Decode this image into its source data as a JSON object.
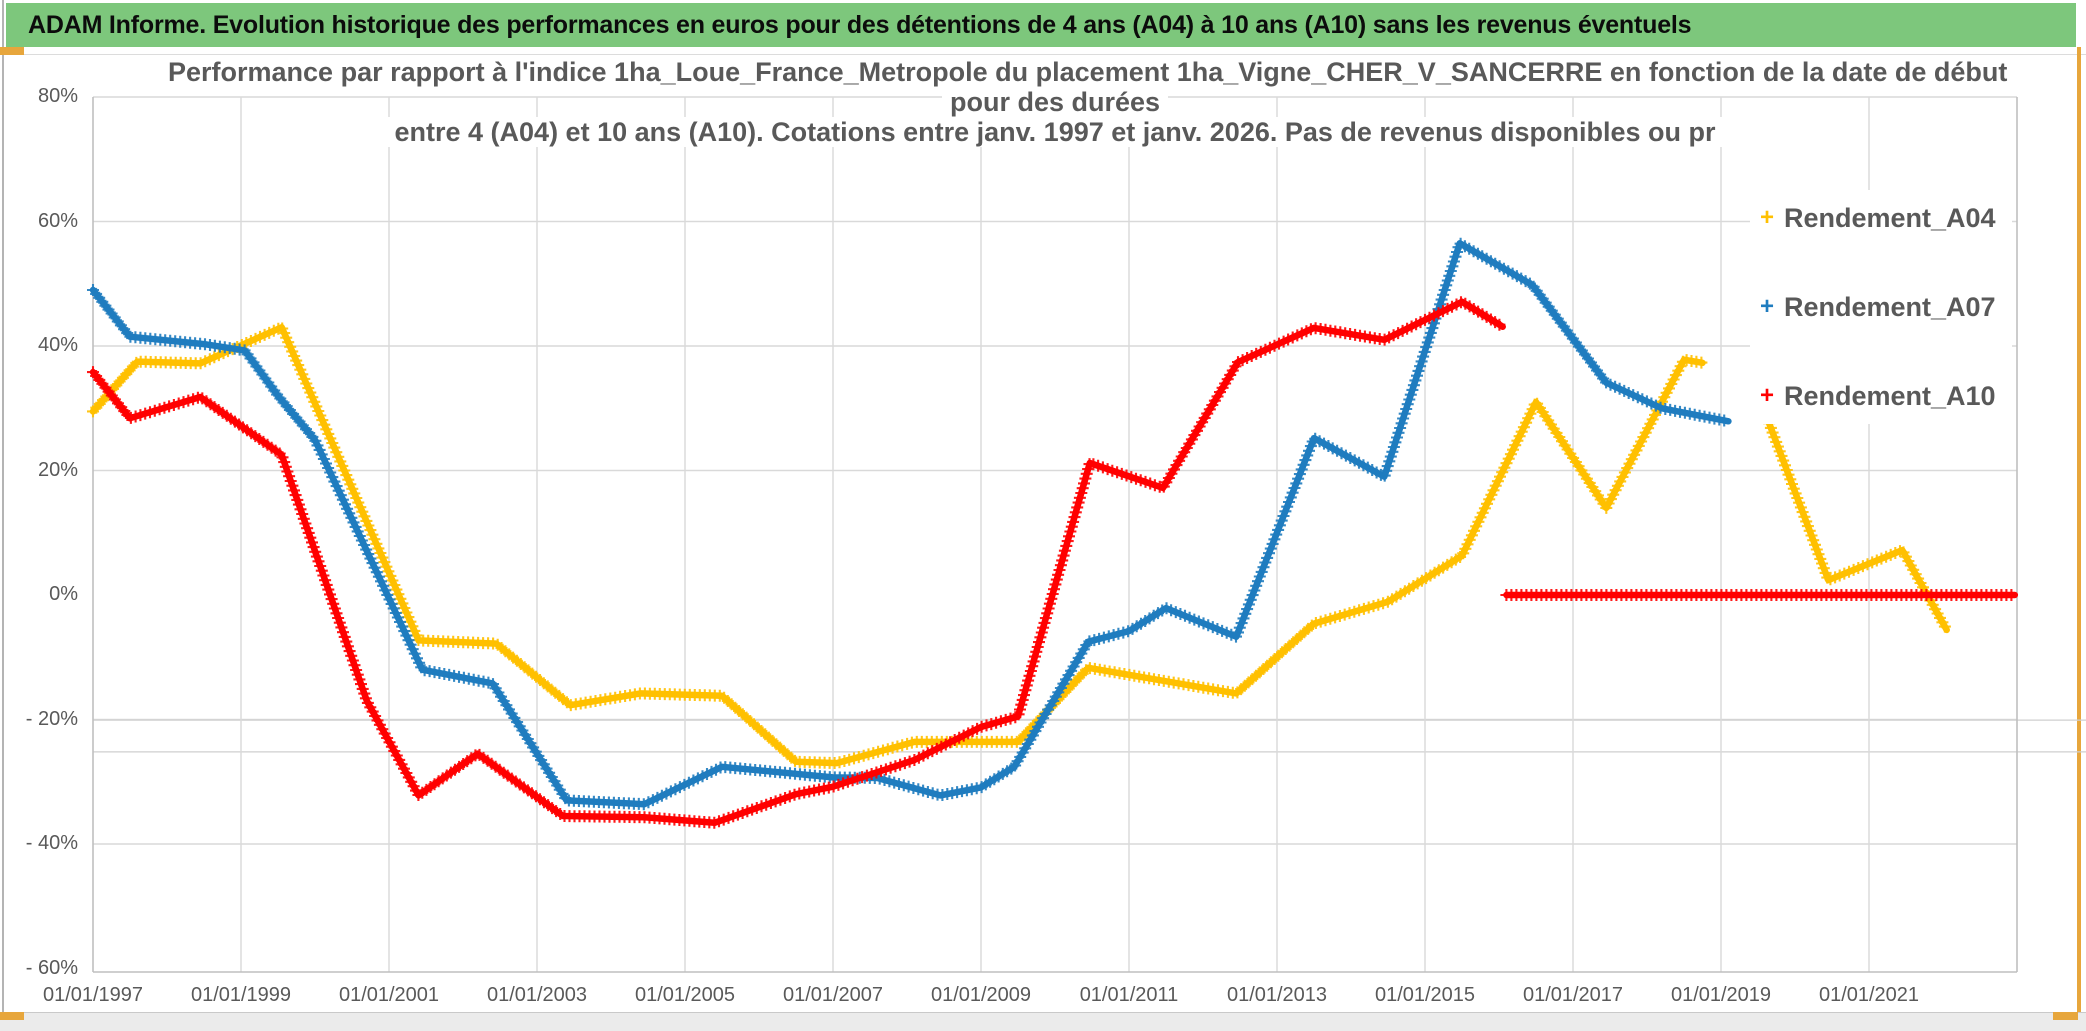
{
  "header": {
    "title": "ADAM Informe. Evolution historique des performances en euros pour des détentions de 4 ans (A04) à 10 ans (A10) sans les revenus éventuels",
    "bar_color": "#7dc77c",
    "accent_color": "#e7a63c"
  },
  "chart_data": {
    "type": "line",
    "title_lines": [
      "Performance par rapport à l'indice 1ha_Loue_France_Metropole  du placement 1ha_Vigne_CHER_V_SANCERRE en fonction de la date de début",
      "pour des durées",
      "entre 4 (A04) et 10 ans (A10). Cotations entre janv. 1997 et janv. 2026. Pas de revenus disponibles ou pr"
    ],
    "xlabel": "",
    "ylabel": "",
    "xlim": [
      1997,
      2023
    ],
    "ylim": [
      -60,
      80
    ],
    "x_ticks": [
      {
        "year": 1997,
        "label": "01/01/1997"
      },
      {
        "year": 1999,
        "label": "01/01/1999"
      },
      {
        "year": 2001,
        "label": "01/01/2001"
      },
      {
        "year": 2003,
        "label": "01/01/2003"
      },
      {
        "year": 2005,
        "label": "01/01/2005"
      },
      {
        "year": 2007,
        "label": "01/01/2007"
      },
      {
        "year": 2009,
        "label": "01/01/2009"
      },
      {
        "year": 2011,
        "label": "01/01/2011"
      },
      {
        "year": 2013,
        "label": "01/01/2013"
      },
      {
        "year": 2015,
        "label": "01/01/2015"
      },
      {
        "year": 2017,
        "label": "01/01/2017"
      },
      {
        "year": 2019,
        "label": "01/01/2019"
      },
      {
        "year": 2021,
        "label": "01/01/2021"
      }
    ],
    "y_ticks": [
      {
        "pct": 80,
        "label": "80%",
        "gridline": true
      },
      {
        "pct": 60,
        "label": "60%",
        "gridline": true
      },
      {
        "pct": 40,
        "label": "40%",
        "gridline": true
      },
      {
        "pct": 20,
        "label": "20%",
        "gridline": true
      },
      {
        "pct": 0,
        "label": "0%",
        "gridline": false
      },
      {
        "pct": -20,
        "label": "- 20%",
        "gridline": true
      },
      {
        "pct": -40,
        "label": "- 40%",
        "gridline": true
      },
      {
        "pct": -60,
        "label": "- 60%",
        "gridline": false
      }
    ],
    "extra_gridlines_pct": [
      -20.1,
      -25.2
    ],
    "grid_years": [
      1999,
      2001,
      2003,
      2005,
      2007,
      2009,
      2011,
      2013,
      2015,
      2017,
      2019,
      2021
    ],
    "legend": [
      {
        "label": "Rendement_A04",
        "color": "#FFC000",
        "marker": "+"
      },
      {
        "label": "Rendement_A07",
        "color": "#1F7CBF",
        "marker": "+"
      },
      {
        "label": "Rendement_A10",
        "color": "#FF0000",
        "marker": "+"
      }
    ],
    "series": [
      {
        "name": "Rendement_A04",
        "color": "#FFC000",
        "segments": [
          [
            [
              1997.0,
              29.5
            ],
            [
              1997.6,
              37.5
            ],
            [
              1998.45,
              37.2
            ],
            [
              1999.55,
              43.0
            ],
            [
              2001.4,
              -7.3
            ],
            [
              2002.45,
              -7.8
            ],
            [
              2003.45,
              -17.7
            ],
            [
              2004.4,
              -15.8
            ],
            [
              2005.5,
              -16.2
            ],
            [
              2006.5,
              -26.8
            ],
            [
              2007.05,
              -27.0
            ],
            [
              2008.1,
              -23.6
            ],
            [
              2009.5,
              -23.6
            ],
            [
              2010.45,
              -11.7
            ],
            [
              2012.45,
              -15.8
            ],
            [
              2013.5,
              -4.6
            ],
            [
              2014.5,
              -1.1
            ],
            [
              2015.5,
              6.3
            ],
            [
              2016.5,
              31.0
            ],
            [
              2017.45,
              14.0
            ],
            [
              2018.5,
              37.8
            ],
            [
              2018.75,
              37.3
            ]
          ],
          [
            [
              2019.65,
              27.6
            ],
            [
              2020.45,
              2.4
            ],
            [
              2021.45,
              7.2
            ],
            [
              2022.05,
              -5.6
            ]
          ]
        ]
      },
      {
        "name": "Rendement_A07",
        "color": "#1F7CBF",
        "segments": [
          [
            [
              1997.0,
              49.0
            ],
            [
              1997.5,
              41.5
            ],
            [
              1998.5,
              40.3
            ],
            [
              1999.05,
              39.3
            ],
            [
              1999.5,
              32.0
            ],
            [
              2000.0,
              24.9
            ],
            [
              2001.45,
              -12.0
            ],
            [
              2002.4,
              -14.2
            ],
            [
              2003.4,
              -33.0
            ],
            [
              2004.45,
              -33.6
            ],
            [
              2005.5,
              -27.6
            ],
            [
              2007.0,
              -29.3
            ],
            [
              2007.6,
              -29.4
            ],
            [
              2008.45,
              -32.2
            ],
            [
              2009.0,
              -30.9
            ],
            [
              2009.45,
              -27.6
            ],
            [
              2010.45,
              -7.5
            ],
            [
              2011.0,
              -5.8
            ],
            [
              2011.5,
              -2.1
            ],
            [
              2012.45,
              -6.7
            ],
            [
              2013.5,
              25.2
            ],
            [
              2014.45,
              19.0
            ],
            [
              2015.47,
              56.5
            ],
            [
              2016.45,
              49.8
            ],
            [
              2017.45,
              34.1
            ],
            [
              2018.2,
              30.0
            ],
            [
              2019.1,
              27.9
            ]
          ]
        ]
      },
      {
        "name": "Rendement_A10",
        "color": "#FF0000",
        "segments": [
          [
            [
              1997.0,
              35.8
            ],
            [
              1997.5,
              28.4
            ],
            [
              1998.45,
              31.8
            ],
            [
              1999.55,
              22.5
            ],
            [
              2000.7,
              -17.0
            ],
            [
              2001.4,
              -32.2
            ],
            [
              2002.2,
              -25.5
            ],
            [
              2003.35,
              -35.5
            ],
            [
              2004.45,
              -35.7
            ],
            [
              2005.4,
              -36.6
            ],
            [
              2006.5,
              -32.0
            ],
            [
              2007.0,
              -30.8
            ],
            [
              2008.1,
              -26.5
            ],
            [
              2009.0,
              -21.2
            ],
            [
              2009.5,
              -19.5
            ],
            [
              2010.47,
              21.2
            ],
            [
              2011.46,
              17.2
            ],
            [
              2012.47,
              37.4
            ],
            [
              2013.5,
              42.9
            ],
            [
              2014.45,
              41.0
            ],
            [
              2015.5,
              47.1
            ],
            [
              2016.05,
              43.1
            ]
          ],
          [
            [
              2016.1,
              0.0
            ],
            [
              2022.97,
              0.0
            ]
          ]
        ]
      }
    ],
    "legend_position": "right",
    "grid": true
  }
}
